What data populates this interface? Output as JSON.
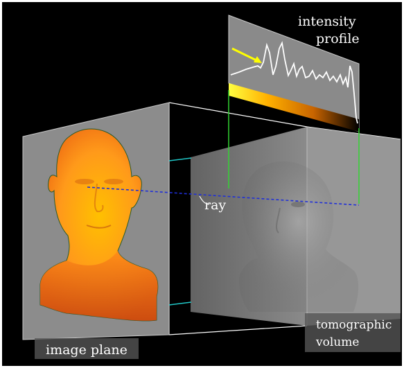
{
  "labels": {
    "intensity_line1": "intensity",
    "intensity_line2": "profile",
    "ray": "ray",
    "tomo_line1": "tomographic",
    "tomo_line2": "volume",
    "image_plane": "image plane"
  },
  "colors": {
    "background": "#000000",
    "ray": "#1f2fd8",
    "projection_lines": "#33d433",
    "arrow": "#ffff00",
    "face": "#ff8a1e",
    "panel": "#8f8f8f"
  }
}
